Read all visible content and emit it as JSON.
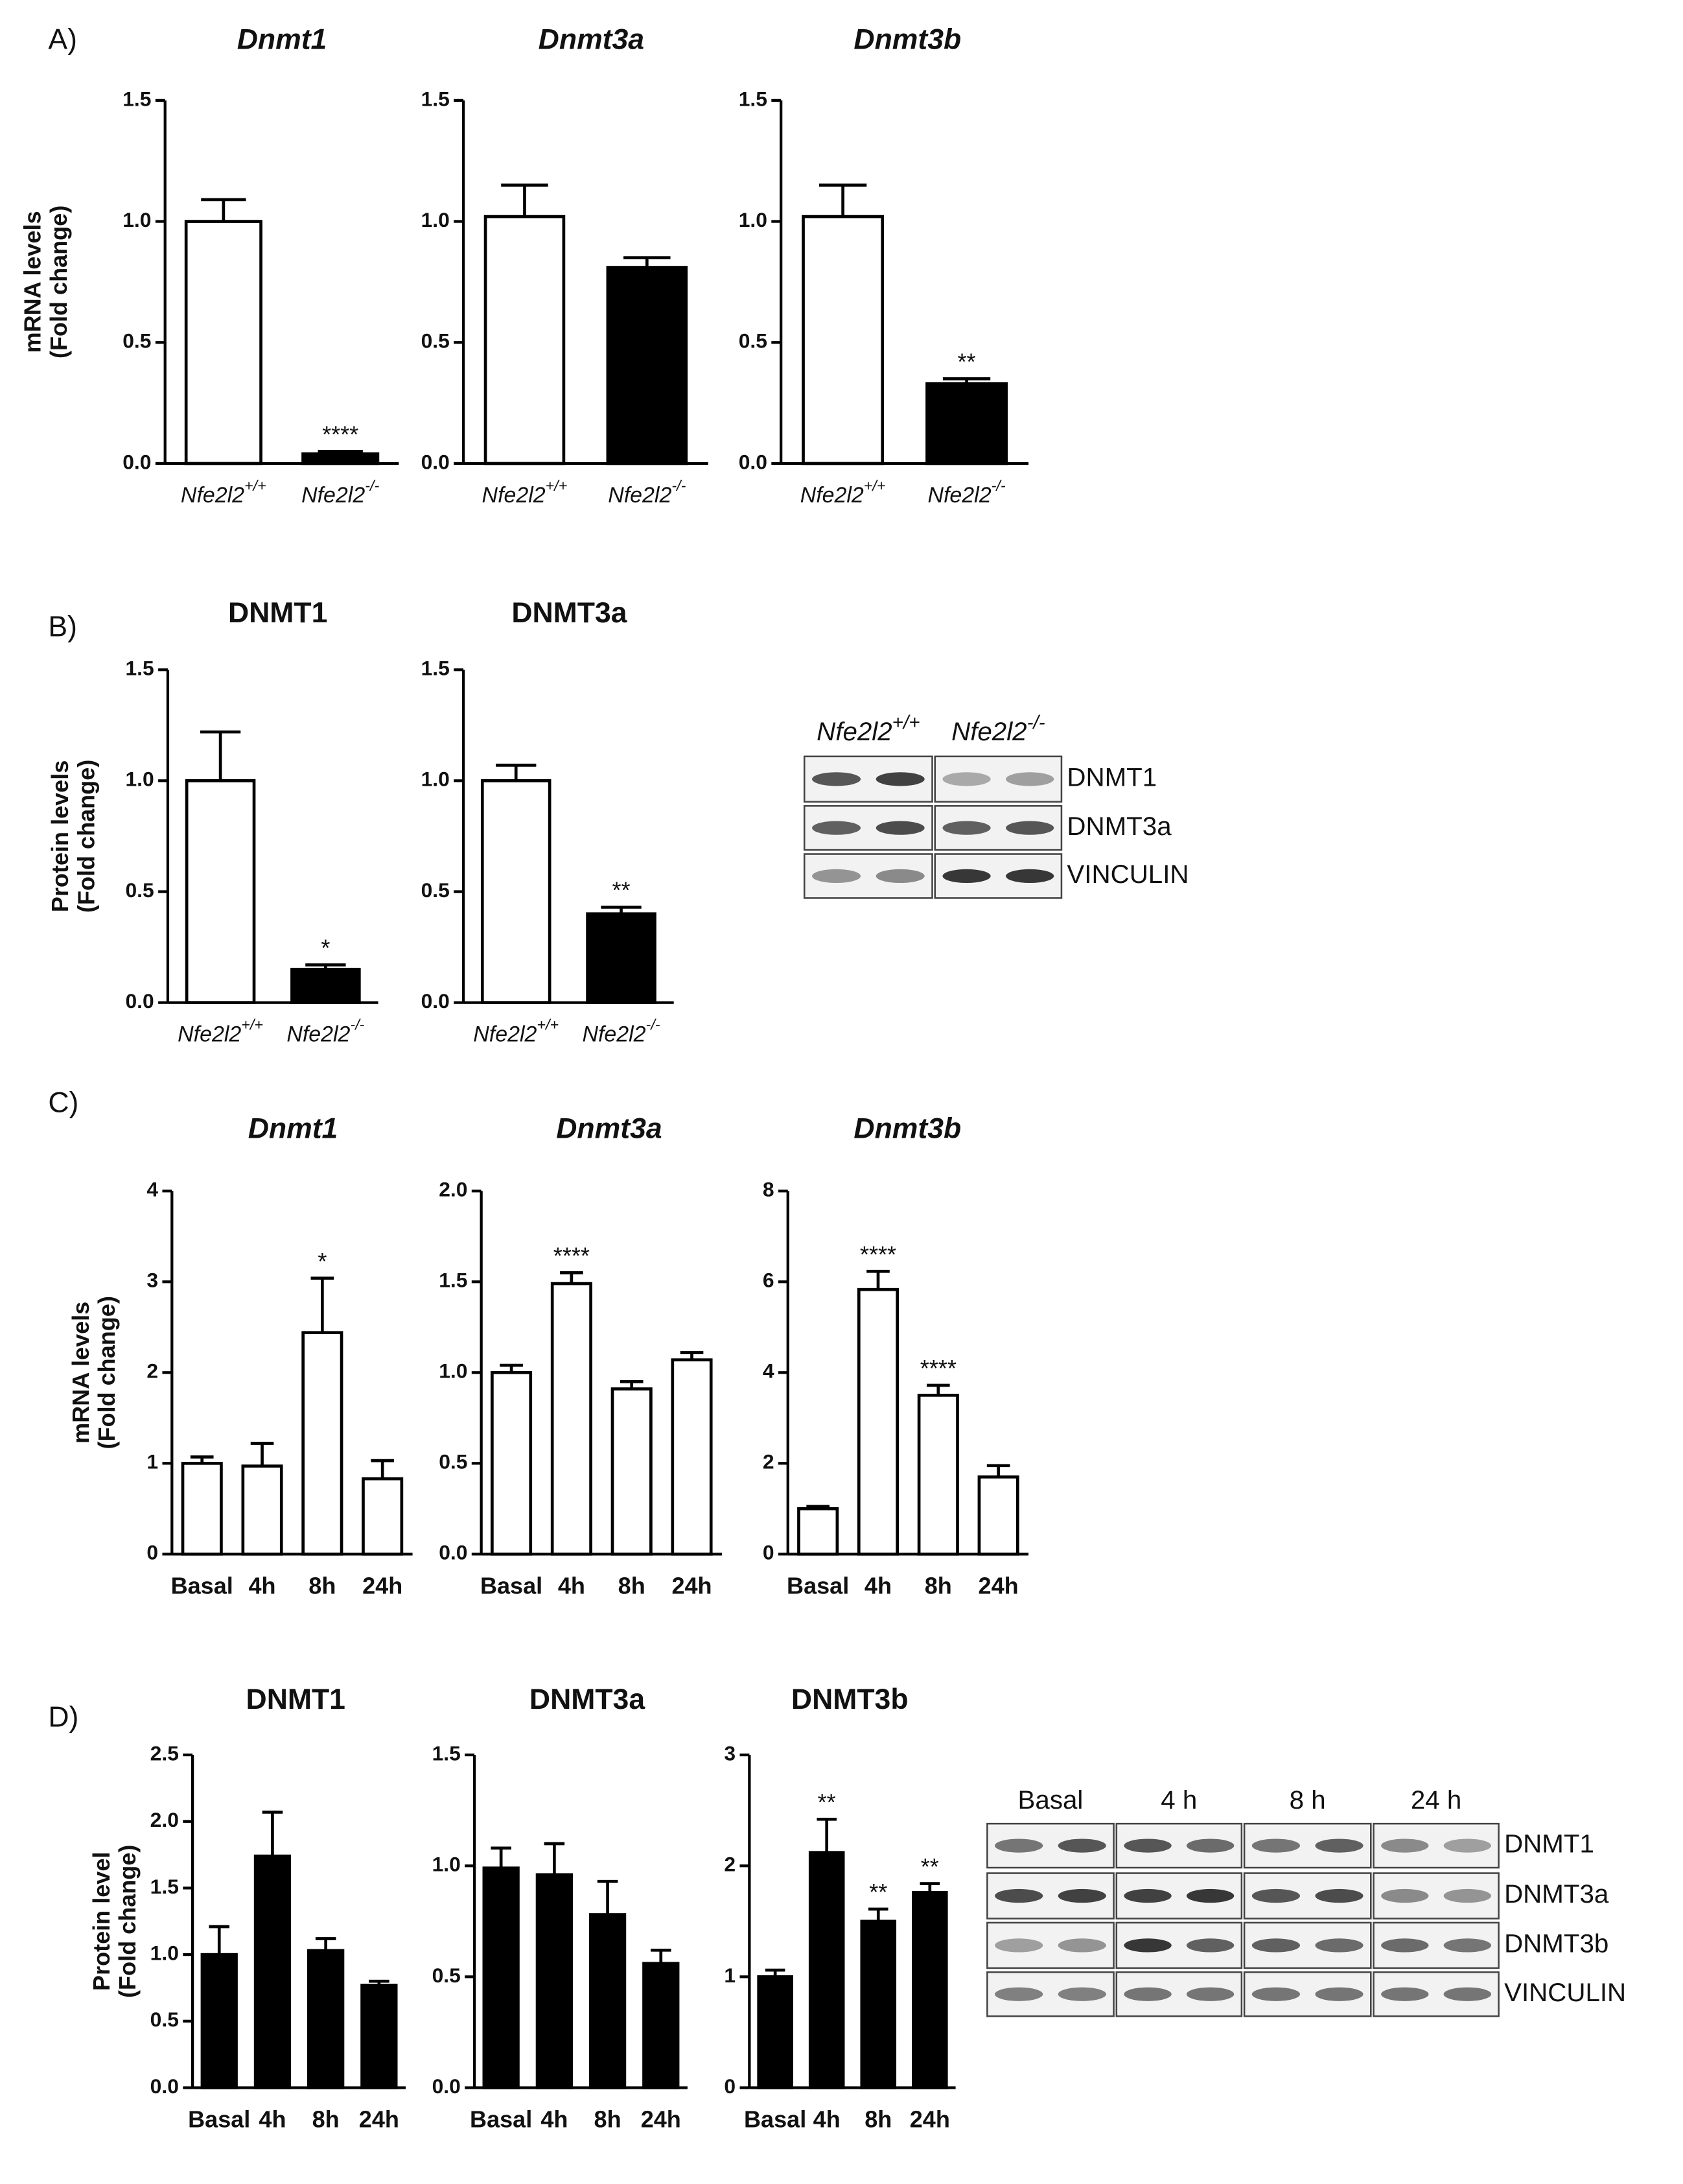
{
  "panel_labels": [
    "A)",
    "B)",
    "C)",
    "D)"
  ],
  "chart_data": [
    {
      "type": "bar",
      "title": "Dnmt1",
      "title_italic": true,
      "ylabel": [
        "mRNA levels",
        "(Fold change)"
      ],
      "categories": [
        "Nfe2l2",
        "Nfe2l2"
      ],
      "category_superscripts": [
        "+/+",
        "-/-"
      ],
      "category_italic": true,
      "values": [
        1.0,
        0.04
      ],
      "errors": [
        0.09,
        0.01
      ],
      "annotations": [
        null,
        "****"
      ],
      "colors": [
        "#ffffff",
        "#000000"
      ],
      "ylim": [
        0,
        1.5
      ],
      "yticks": [
        {
          "value": 0,
          "label": "0.0"
        },
        0.5,
        {
          "value": 1,
          "label": "1.0"
        },
        1.5
      ]
    },
    {
      "type": "bar",
      "title": "Dnmt3a",
      "title_italic": true,
      "categories": [
        "Nfe2l2",
        "Nfe2l2"
      ],
      "category_superscripts": [
        "+/+",
        "-/-"
      ],
      "category_italic": true,
      "values": [
        1.02,
        0.81
      ],
      "errors": [
        0.13,
        0.04
      ],
      "annotations": [
        null,
        null
      ],
      "colors": [
        "#ffffff",
        "#000000"
      ],
      "ylim": [
        0,
        1.5
      ],
      "yticks": [
        {
          "value": 0,
          "label": "0.0"
        },
        0.5,
        {
          "value": 1,
          "label": "1.0"
        },
        1.5
      ]
    },
    {
      "type": "bar",
      "title": "Dnmt3b",
      "title_italic": true,
      "categories": [
        "Nfe2l2",
        "Nfe2l2"
      ],
      "category_superscripts": [
        "+/+",
        "-/-"
      ],
      "category_italic": true,
      "values": [
        1.02,
        0.33
      ],
      "errors": [
        0.13,
        0.02
      ],
      "annotations": [
        null,
        "**"
      ],
      "colors": [
        "#ffffff",
        "#000000"
      ],
      "ylim": [
        0,
        1.5
      ],
      "yticks": [
        {
          "value": 0,
          "label": "0.0"
        },
        0.5,
        {
          "value": 1,
          "label": "1.0"
        },
        1.5
      ]
    },
    {
      "type": "bar",
      "title": "DNMT1",
      "title_italic": false,
      "ylabel": [
        "Protein levels",
        "(Fold change)"
      ],
      "categories": [
        "Nfe2l2",
        "Nfe2l2"
      ],
      "category_superscripts": [
        "+/+",
        "-/-"
      ],
      "category_italic": true,
      "values": [
        1.0,
        0.15
      ],
      "errors": [
        0.22,
        0.02
      ],
      "annotations": [
        null,
        "*"
      ],
      "colors": [
        "#ffffff",
        "#000000"
      ],
      "ylim": [
        0,
        1.5
      ],
      "yticks": [
        {
          "value": 0,
          "label": "0.0"
        },
        0.5,
        {
          "value": 1,
          "label": "1.0"
        },
        1.5
      ]
    },
    {
      "type": "bar",
      "title": "DNMT3a",
      "title_italic": false,
      "categories": [
        "Nfe2l2",
        "Nfe2l2"
      ],
      "category_superscripts": [
        "+/+",
        "-/-"
      ],
      "category_italic": true,
      "values": [
        1.0,
        0.4
      ],
      "errors": [
        0.07,
        0.03
      ],
      "annotations": [
        null,
        "**"
      ],
      "colors": [
        "#ffffff",
        "#000000"
      ],
      "ylim": [
        0,
        1.5
      ],
      "yticks": [
        {
          "value": 0,
          "label": "0.0"
        },
        0.5,
        {
          "value": 1,
          "label": "1.0"
        },
        1.5
      ]
    },
    {
      "type": "bar",
      "title": "Dnmt1",
      "title_italic": true,
      "ylabel": [
        "mRNA levels",
        "(Fold change)"
      ],
      "categories": [
        "Basal",
        "4h",
        "8h",
        "24h"
      ],
      "category_italic": false,
      "values": [
        1.0,
        0.97,
        2.44,
        0.83
      ],
      "errors": [
        0.07,
        0.25,
        0.6,
        0.2
      ],
      "annotations": [
        null,
        null,
        "*",
        null
      ],
      "colors": [
        "#ffffff",
        "#ffffff",
        "#ffffff",
        "#ffffff"
      ],
      "ylim": [
        0,
        4
      ],
      "yticks": [
        0,
        1,
        2,
        3,
        4
      ]
    },
    {
      "type": "bar",
      "title": "Dnmt3a",
      "title_italic": true,
      "categories": [
        "Basal",
        "4h",
        "8h",
        "24h"
      ],
      "category_italic": false,
      "values": [
        1.0,
        1.49,
        0.91,
        1.07
      ],
      "errors": [
        0.04,
        0.06,
        0.04,
        0.04
      ],
      "annotations": [
        null,
        "****",
        null,
        null
      ],
      "colors": [
        "#ffffff",
        "#ffffff",
        "#ffffff",
        "#ffffff"
      ],
      "ylim": [
        0,
        2
      ],
      "yticks": [
        {
          "value": 0,
          "label": "0.0"
        },
        0.5,
        {
          "value": 1,
          "label": "1.0"
        },
        1.5,
        {
          "value": 2,
          "label": "2.0"
        }
      ]
    },
    {
      "type": "bar",
      "title": "Dnmt3b",
      "title_italic": true,
      "categories": [
        "Basal",
        "4h",
        "8h",
        "24h"
      ],
      "category_italic": false,
      "values": [
        1.0,
        5.83,
        3.5,
        1.7
      ],
      "errors": [
        0.05,
        0.4,
        0.22,
        0.25
      ],
      "annotations": [
        null,
        "****",
        "****",
        null
      ],
      "colors": [
        "#ffffff",
        "#ffffff",
        "#ffffff",
        "#ffffff"
      ],
      "ylim": [
        0,
        8
      ],
      "yticks": [
        0,
        2,
        4,
        6,
        8
      ]
    },
    {
      "type": "bar",
      "title": "DNMT1",
      "title_italic": false,
      "ylabel": [
        "Protein level",
        "(Fold change)"
      ],
      "categories": [
        "Basal",
        "4h",
        "8h",
        "24h"
      ],
      "category_italic": false,
      "values": [
        1.0,
        1.74,
        1.03,
        0.77
      ],
      "errors": [
        0.21,
        0.33,
        0.09,
        0.03
      ],
      "annotations": [
        null,
        null,
        null,
        null
      ],
      "colors": [
        "#000000",
        "#000000",
        "#000000",
        "#000000"
      ],
      "ylim": [
        0,
        2.5
      ],
      "yticks": [
        {
          "value": 0,
          "label": "0.0"
        },
        0.5,
        {
          "value": 1,
          "label": "1.0"
        },
        1.5,
        {
          "value": 2,
          "label": "2.0"
        },
        2.5
      ]
    },
    {
      "type": "bar",
      "title": "DNMT3a",
      "title_italic": false,
      "categories": [
        "Basal",
        "4h",
        "8h",
        "24h"
      ],
      "category_italic": false,
      "values": [
        0.99,
        0.96,
        0.78,
        0.56
      ],
      "errors": [
        0.09,
        0.14,
        0.15,
        0.06
      ],
      "annotations": [
        null,
        null,
        null,
        null
      ],
      "colors": [
        "#000000",
        "#000000",
        "#000000",
        "#000000"
      ],
      "ylim": [
        0,
        1.5
      ],
      "yticks": [
        {
          "value": 0,
          "label": "0.0"
        },
        0.5,
        {
          "value": 1,
          "label": "1.0"
        },
        1.5
      ]
    },
    {
      "type": "bar",
      "title": "DNMT3b",
      "title_italic": false,
      "categories": [
        "Basal",
        "4h",
        "8h",
        "24h"
      ],
      "category_italic": false,
      "values": [
        1.0,
        2.12,
        1.5,
        1.76
      ],
      "errors": [
        0.06,
        0.3,
        0.11,
        0.08
      ],
      "annotations": [
        null,
        "**",
        "**",
        "**"
      ],
      "colors": [
        "#000000",
        "#000000",
        "#000000",
        "#000000"
      ],
      "ylim": [
        0,
        3
      ],
      "yticks": [
        0,
        1,
        2,
        3
      ]
    }
  ],
  "blots": [
    {
      "column_headers": [
        "Nfe2l2",
        "Nfe2l2"
      ],
      "column_header_superscripts": [
        "+/+",
        "-/-"
      ],
      "row_labels": [
        "DNMT1",
        "DNMT3a",
        "VINCULIN"
      ]
    },
    {
      "column_headers": [
        "Basal",
        "4 h",
        "8 h",
        "24 h"
      ],
      "row_labels": [
        "DNMT1",
        "DNMT3a",
        "DNMT3b",
        "VINCULIN"
      ]
    }
  ]
}
